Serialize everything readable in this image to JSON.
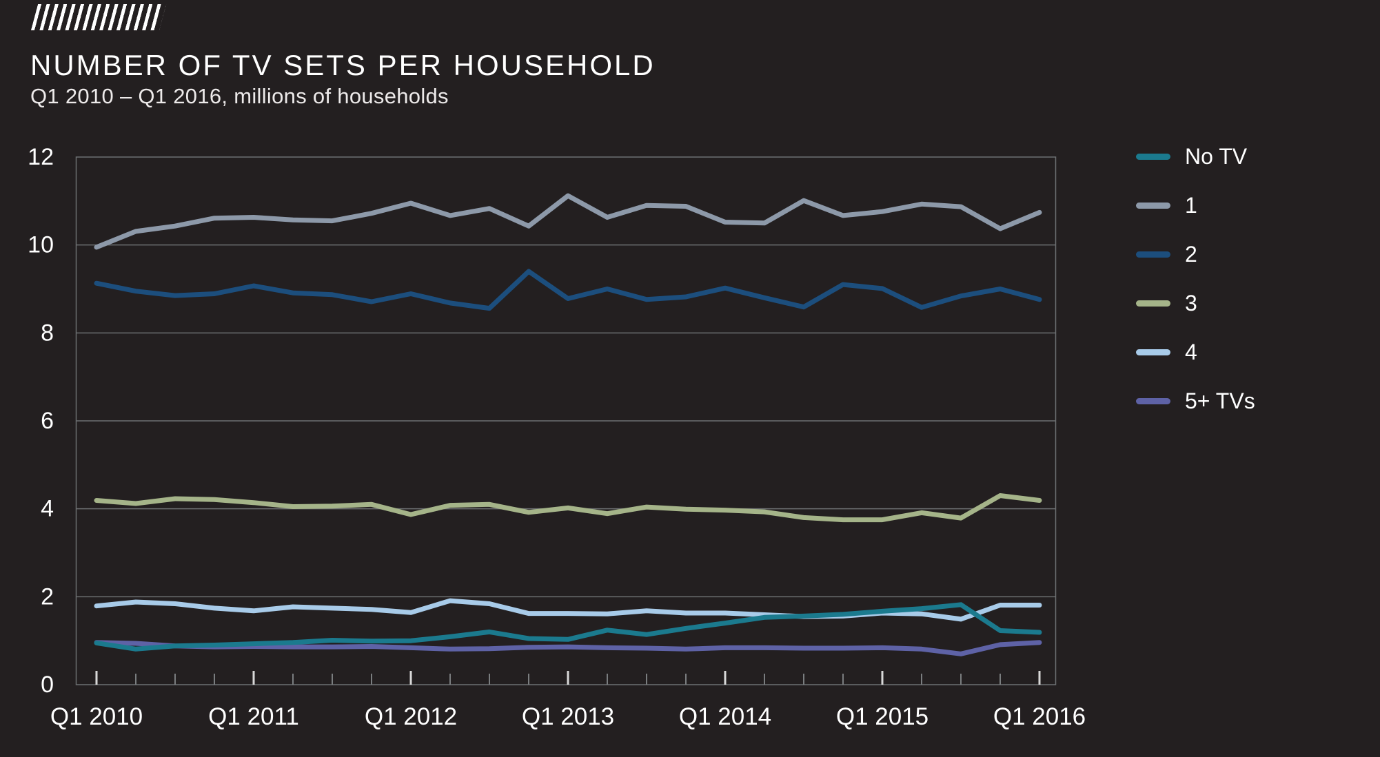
{
  "page": {
    "background": "#231f20"
  },
  "logo": {
    "icon": "diagonal-stripes"
  },
  "header": {
    "title": "NUMBER OF TV SETS PER HOUSEHOLD",
    "subtitle": "Q1 2010 – Q1 2016, millions of households"
  },
  "legend": {
    "position": "right",
    "items": [
      {
        "label": "No TV",
        "color": "#1b7a8e"
      },
      {
        "label": "1",
        "color": "#8d99a9"
      },
      {
        "label": "2",
        "color": "#1c4e7d"
      },
      {
        "label": "3",
        "color": "#a5b489"
      },
      {
        "label": "4",
        "color": "#a8cbe9"
      },
      {
        "label": "5+ TVs",
        "color": "#5e62a6"
      }
    ]
  },
  "chart_data": {
    "type": "line",
    "title": "NUMBER OF TV SETS PER HOUSEHOLD",
    "subtitle": "Q1 2010 – Q1 2016, millions of households",
    "ylabel": "millions of households",
    "ylim": [
      0,
      12
    ],
    "y_ticks": [
      0,
      2,
      4,
      6,
      8,
      10,
      12
    ],
    "grid": true,
    "legend_position": "right",
    "categories": [
      "Q1 2010",
      "Q2 2010",
      "Q3 2010",
      "Q4 2010",
      "Q1 2011",
      "Q2 2011",
      "Q3 2011",
      "Q4 2011",
      "Q1 2012",
      "Q2 2012",
      "Q3 2012",
      "Q4 2012",
      "Q1 2013",
      "Q2 2013",
      "Q3 2013",
      "Q4 2013",
      "Q1 2014",
      "Q2 2014",
      "Q3 2014",
      "Q4 2014",
      "Q1 2015",
      "Q2 2015",
      "Q3 2015",
      "Q4 2015",
      "Q1 2016"
    ],
    "x_axis_shown_labels": [
      "Q1 2010",
      "Q1 2011",
      "Q1 2012",
      "Q1 2013",
      "Q1 2014",
      "Q1 2015",
      "Q1 2016"
    ],
    "series": [
      {
        "name": "No TV",
        "color": "#1b7a8e",
        "values": [
          0.95,
          0.81,
          0.88,
          0.9,
          0.93,
          0.96,
          1.01,
          0.99,
          1.0,
          1.09,
          1.2,
          1.05,
          1.03,
          1.24,
          1.14,
          1.28,
          1.4,
          1.53,
          1.56,
          1.6,
          1.67,
          1.73,
          1.82,
          1.23,
          1.19
        ]
      },
      {
        "name": "1",
        "color": "#8d99a9",
        "values": [
          9.95,
          10.31,
          10.43,
          10.61,
          10.63,
          10.57,
          10.55,
          10.72,
          10.95,
          10.67,
          10.83,
          10.43,
          11.12,
          10.63,
          10.9,
          10.88,
          10.52,
          10.5,
          11.01,
          10.67,
          10.76,
          10.93,
          10.87,
          10.37,
          10.74
        ]
      },
      {
        "name": "2",
        "color": "#1c4e7d",
        "values": [
          9.13,
          8.95,
          8.85,
          8.89,
          9.07,
          8.91,
          8.87,
          8.71,
          8.89,
          8.68,
          8.56,
          9.4,
          8.78,
          9.0,
          8.76,
          8.82,
          9.02,
          8.8,
          8.59,
          9.1,
          9.01,
          8.58,
          8.84,
          9.0,
          8.76
        ]
      },
      {
        "name": "3",
        "color": "#a5b489",
        "values": [
          4.19,
          4.12,
          4.23,
          4.21,
          4.14,
          4.05,
          4.06,
          4.1,
          3.87,
          4.08,
          4.1,
          3.92,
          4.02,
          3.89,
          4.04,
          3.99,
          3.97,
          3.93,
          3.8,
          3.75,
          3.75,
          3.91,
          3.79,
          4.3,
          4.19
        ]
      },
      {
        "name": "4",
        "color": "#a8cbe9",
        "values": [
          1.79,
          1.88,
          1.84,
          1.74,
          1.68,
          1.77,
          1.74,
          1.71,
          1.64,
          1.91,
          1.84,
          1.62,
          1.62,
          1.61,
          1.68,
          1.63,
          1.63,
          1.59,
          1.55,
          1.56,
          1.63,
          1.61,
          1.49,
          1.81,
          1.81
        ]
      },
      {
        "name": "5+ TVs",
        "color": "#5e62a6",
        "values": [
          0.96,
          0.94,
          0.88,
          0.86,
          0.87,
          0.86,
          0.86,
          0.87,
          0.84,
          0.81,
          0.82,
          0.85,
          0.86,
          0.84,
          0.83,
          0.81,
          0.84,
          0.84,
          0.83,
          0.83,
          0.84,
          0.81,
          0.7,
          0.91,
          0.96
        ]
      }
    ],
    "style": {
      "background": "#231f20",
      "grid_color": "#6d7072",
      "axis_text_color": "#ffffff",
      "quarter_tick_color": "#7a7d7f",
      "year_tick_color": "#d8d8d8",
      "line_width": 7
    }
  }
}
